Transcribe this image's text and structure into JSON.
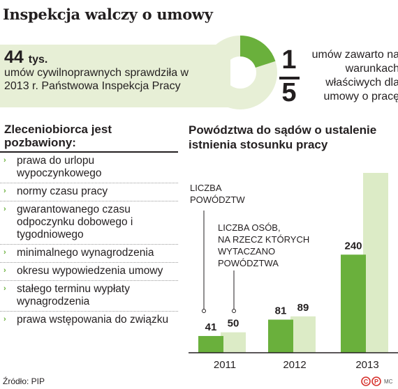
{
  "title": "Inspekcja walczy o umowy",
  "summary": {
    "value": "44",
    "unit": "tys.",
    "text": "umów cywilnoprawnych sprawdziła w 2013 r. Państwowa Inspekcja Pracy"
  },
  "fraction": {
    "numerator": "1",
    "denominator": "5",
    "text": "umów zawarto na warunkach właściwych dla umowy o pracę",
    "share": 0.2,
    "colors": {
      "highlight": "#6ab03c",
      "rest": "#e7efd6"
    }
  },
  "left": {
    "heading": "Zleceniobiorca jest pozbawiony:",
    "items": [
      "prawa do urlopu wypoczynkowego",
      "normy czasu pracy",
      "gwarantowanego czasu odpoczynku dobowego i tygodniowego",
      "minimalnego wynagrodzenia",
      "okresu wypowiedzenia umowy",
      "stałego terminu wypłaty wynagrodzenia",
      "prawa wstępowania do związku"
    ]
  },
  "chart_data": {
    "type": "bar",
    "title": "Powództwa do sądów o ustalenie istnienia stosunku pracy",
    "categories": [
      "2011",
      "2012",
      "2013"
    ],
    "series": [
      {
        "name": "LICZBA POWÓDZTW",
        "values": [
          41,
          81,
          240
        ],
        "color": "#6ab03c"
      },
      {
        "name": "LICZBA OSÓB, NA RZECZ KTÓRYCH WYTACZANO POWÓDZTWA",
        "values": [
          50,
          89,
          440
        ],
        "color": "#dcebc6"
      }
    ],
    "ylim": [
      0,
      440
    ],
    "grid": false
  },
  "footer": {
    "source": "Źródło: PIP",
    "credit": "MC"
  }
}
